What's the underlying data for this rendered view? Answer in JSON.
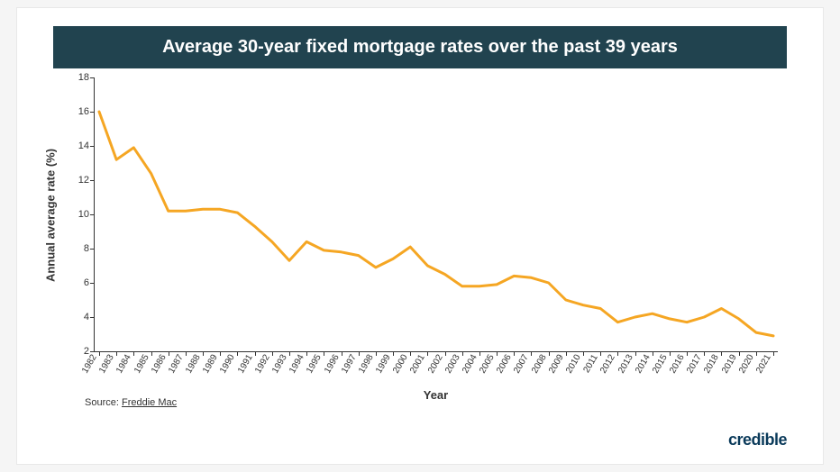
{
  "title": "Average 30-year fixed mortgage rates over the past 39 years",
  "title_bg": "#21434f",
  "title_color": "#ffffff",
  "title_fontsize": 20,
  "chart": {
    "type": "line",
    "line_color": "#f5a623",
    "line_width": 3,
    "background_color": "#ffffff",
    "ylabel": "Annual average rate (%)",
    "xlabel": "Year",
    "label_fontsize": 13,
    "tick_fontsize": 11,
    "ylim": [
      2,
      18
    ],
    "yticks": [
      2,
      4,
      6,
      8,
      10,
      12,
      14,
      16,
      18
    ],
    "xticks": [
      1982,
      1983,
      1984,
      1985,
      1986,
      1987,
      1988,
      1989,
      1990,
      1991,
      1992,
      1993,
      1994,
      1995,
      1996,
      1997,
      1998,
      1999,
      2000,
      2001,
      2002,
      2003,
      2004,
      2005,
      2006,
      2007,
      2008,
      2009,
      2010,
      2011,
      2012,
      2013,
      2014,
      2015,
      2016,
      2017,
      2018,
      2019,
      2020,
      2021
    ],
    "x_rotation": -60,
    "years": [
      1982,
      1983,
      1984,
      1985,
      1986,
      1987,
      1988,
      1989,
      1990,
      1991,
      1992,
      1993,
      1994,
      1995,
      1996,
      1997,
      1998,
      1999,
      2000,
      2001,
      2002,
      2003,
      2004,
      2005,
      2006,
      2007,
      2008,
      2009,
      2010,
      2011,
      2012,
      2013,
      2014,
      2015,
      2016,
      2017,
      2018,
      2019,
      2020,
      2021
    ],
    "values": [
      16.0,
      13.2,
      13.9,
      12.4,
      10.2,
      10.2,
      10.3,
      10.3,
      10.1,
      9.3,
      8.4,
      7.3,
      8.4,
      7.9,
      7.8,
      7.6,
      6.9,
      7.4,
      8.1,
      7.0,
      6.5,
      5.8,
      5.8,
      5.9,
      6.4,
      6.3,
      6.0,
      5.0,
      4.7,
      4.5,
      3.7,
      4.0,
      4.2,
      3.9,
      3.7,
      4.0,
      4.5,
      3.9,
      3.1,
      2.9
    ]
  },
  "source_prefix": "Source: ",
  "source_link": "Freddie Mac",
  "brand": "credible",
  "brand_color": "#0a3a5a"
}
